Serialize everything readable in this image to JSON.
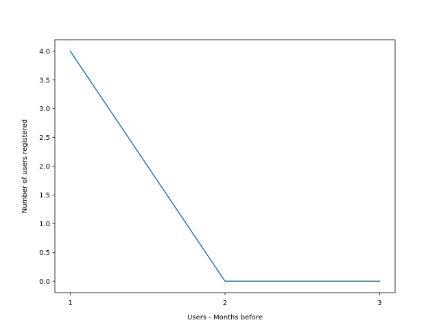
{
  "chart_data": {
    "type": "line",
    "x": [
      1,
      2,
      3
    ],
    "series": [
      {
        "values": [
          4.0,
          0.0,
          0.0
        ],
        "color": "#1f77b4"
      }
    ],
    "xlabel": "Users - Months before",
    "ylabel": "Number of users registered",
    "xlim": [
      0.9,
      3.1
    ],
    "ylim": [
      -0.2,
      4.2
    ],
    "xticks": [
      1,
      2,
      3
    ],
    "xtick_labels": [
      "1",
      "2",
      "3"
    ],
    "yticks": [
      0.0,
      0.5,
      1.0,
      1.5,
      2.0,
      2.5,
      3.0,
      3.5,
      4.0
    ],
    "ytick_labels": [
      "0.0",
      "0.5",
      "1.0",
      "1.5",
      "2.0",
      "2.5",
      "3.0",
      "3.5",
      "4.0"
    ],
    "grid": false,
    "legend": false
  }
}
